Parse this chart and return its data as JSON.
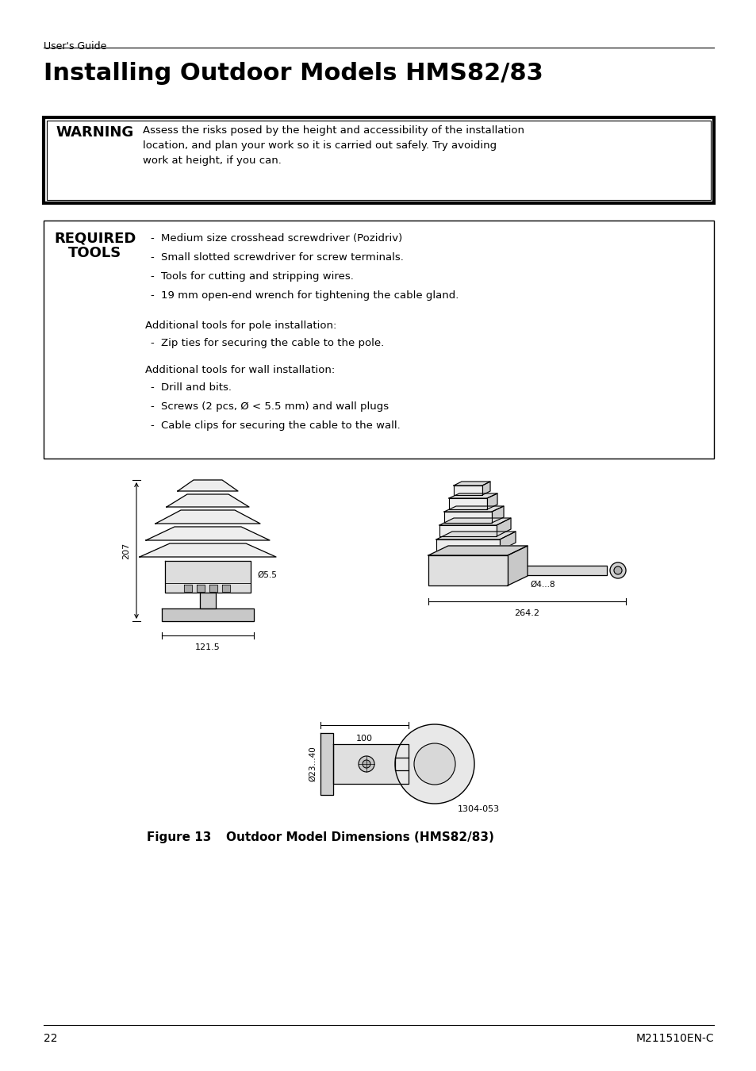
{
  "bg_color": "#ffffff",
  "header_text": "User's Guide",
  "title": "Installing Outdoor Models HMS82/83",
  "warning_label": "WARNING",
  "warning_text": "Assess the risks posed by the height and accessibility of the installation\nlocation, and plan your work so it is carried out safely. Try avoiding\nwork at height, if you can.",
  "required_label_1": "REQUIRED",
  "required_label_2": "TOOLS",
  "required_items": [
    "Medium size crosshead screwdriver (Pozidriv)",
    "Small slotted screwdriver for screw terminals.",
    "Tools for cutting and stripping wires.",
    "19 mm open-end wrench for tightening the cable gland."
  ],
  "additional_pole": "Additional tools for pole installation:",
  "pole_items": [
    "Zip ties for securing the cable to the pole."
  ],
  "additional_wall": "Additional tools for wall installation:",
  "wall_items": [
    "Drill and bits.",
    "Screws (2 pcs, Ø < 5.5 mm) and wall plugs",
    "Cable clips for securing the cable to the wall."
  ],
  "figure_label": "Figure 13",
  "figure_caption": "Outdoor Model Dimensions (HMS82/83)",
  "figure_id": "1304-053",
  "page_number": "22",
  "doc_number": "M211510EN-C",
  "dim_207": "207",
  "dim_121_5": "121.5",
  "dim_264_2": "264.2",
  "dim_5_5": "Ø5.5",
  "dim_4_8": "Ø4...8",
  "dim_100": "100",
  "dim_023_40": "Ø23...40"
}
